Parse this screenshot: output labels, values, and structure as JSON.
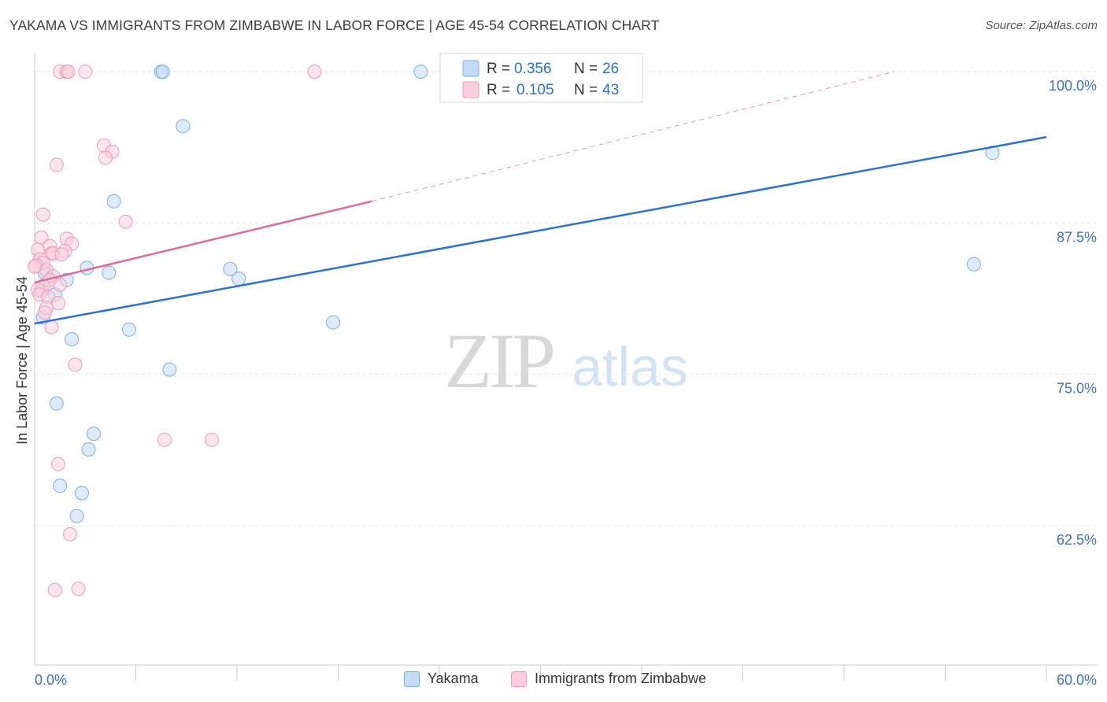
{
  "chart_data": {
    "type": "scatter",
    "title": "YAKAMA VS IMMIGRANTS FROM ZIMBABWE IN LABOR FORCE | AGE 45-54 CORRELATION CHART",
    "source": "Source: ZipAtlas.com",
    "ylabel": "In Labor Force | Age 45-54",
    "xlabel": "",
    "xlim": [
      0,
      60
    ],
    "ylim": [
      51,
      101.5
    ],
    "x_tick_labels": {
      "left": "0.0%",
      "right": "60.0%"
    },
    "y_ticks": [
      {
        "value": 100.0,
        "label": "100.0%"
      },
      {
        "value": 87.5,
        "label": "87.5%"
      },
      {
        "value": 75.0,
        "label": "75.0%"
      },
      {
        "value": 62.5,
        "label": "62.5%"
      }
    ],
    "watermark": {
      "zip": "ZIP",
      "atlas": "atlas"
    },
    "series": [
      {
        "name": "Yakama",
        "color": "#7baee6",
        "fill": "#c4dbf5",
        "line_color": "#2b72d4",
        "stats": {
          "r_label": "R =",
          "r": "0.356",
          "n_label": "N =",
          "n": "26"
        },
        "trend": {
          "x": [
            0,
            60
          ],
          "y": [
            79.2,
            94.6
          ]
        },
        "points": [
          [
            7.5,
            100.0
          ],
          [
            7.6,
            100.0
          ],
          [
            22.9,
            100.0
          ],
          [
            8.8,
            95.5
          ],
          [
            56.8,
            93.3
          ],
          [
            4.7,
            89.3
          ],
          [
            3.1,
            83.8
          ],
          [
            4.4,
            83.4
          ],
          [
            11.6,
            83.7
          ],
          [
            12.1,
            82.9
          ],
          [
            1.9,
            82.8
          ],
          [
            55.7,
            84.1
          ],
          [
            0.4,
            81.9
          ],
          [
            1.2,
            81.6
          ],
          [
            0.5,
            79.7
          ],
          [
            5.6,
            78.7
          ],
          [
            17.7,
            79.3
          ],
          [
            2.2,
            77.9
          ],
          [
            8.0,
            75.4
          ],
          [
            1.3,
            72.6
          ],
          [
            3.5,
            70.1
          ],
          [
            3.2,
            68.8
          ],
          [
            1.5,
            65.8
          ],
          [
            2.8,
            65.2
          ],
          [
            2.5,
            63.3
          ],
          [
            0.6,
            83.4
          ]
        ]
      },
      {
        "name": "Immigrants from Zimbabwe",
        "color": "#f09ab8",
        "fill": "#f9cfdd",
        "line_color": "#e06b96",
        "stats": {
          "r_label": "R =",
          "r": "0.105",
          "n_label": "N =",
          "n": "43"
        },
        "trend": {
          "x": [
            0,
            20
          ],
          "y": [
            82.6,
            89.3
          ]
        },
        "trend_dashed": {
          "x": [
            20,
            51
          ],
          "y": [
            89.3,
            100.0
          ]
        },
        "points": [
          [
            1.5,
            100.0
          ],
          [
            1.9,
            100.0
          ],
          [
            2.0,
            100.0
          ],
          [
            3.0,
            100.0
          ],
          [
            16.6,
            100.0
          ],
          [
            4.1,
            93.9
          ],
          [
            4.6,
            93.4
          ],
          [
            4.2,
            92.9
          ],
          [
            1.3,
            92.3
          ],
          [
            0.5,
            88.2
          ],
          [
            5.4,
            87.6
          ],
          [
            0.4,
            86.3
          ],
          [
            1.9,
            86.2
          ],
          [
            2.2,
            85.8
          ],
          [
            0.2,
            85.3
          ],
          [
            0.9,
            85.6
          ],
          [
            1.0,
            85.0
          ],
          [
            1.1,
            85.0
          ],
          [
            0.3,
            84.5
          ],
          [
            0.5,
            84.2
          ],
          [
            0.1,
            84.0
          ],
          [
            0.7,
            83.6
          ],
          [
            1.1,
            83.1
          ],
          [
            0.9,
            82.8
          ],
          [
            0.5,
            82.3
          ],
          [
            1.5,
            82.4
          ],
          [
            0.2,
            82.0
          ],
          [
            0.3,
            81.6
          ],
          [
            0.8,
            81.4
          ],
          [
            1.4,
            80.9
          ],
          [
            0.7,
            80.5
          ],
          [
            1.0,
            78.9
          ],
          [
            2.4,
            75.8
          ],
          [
            7.7,
            69.6
          ],
          [
            10.5,
            69.6
          ],
          [
            1.4,
            67.6
          ],
          [
            2.1,
            61.8
          ],
          [
            1.2,
            57.2
          ],
          [
            2.6,
            57.3
          ],
          [
            0.0,
            83.9
          ],
          [
            1.8,
            85.2
          ],
          [
            0.6,
            80.1
          ],
          [
            1.6,
            84.9
          ]
        ]
      }
    ]
  }
}
